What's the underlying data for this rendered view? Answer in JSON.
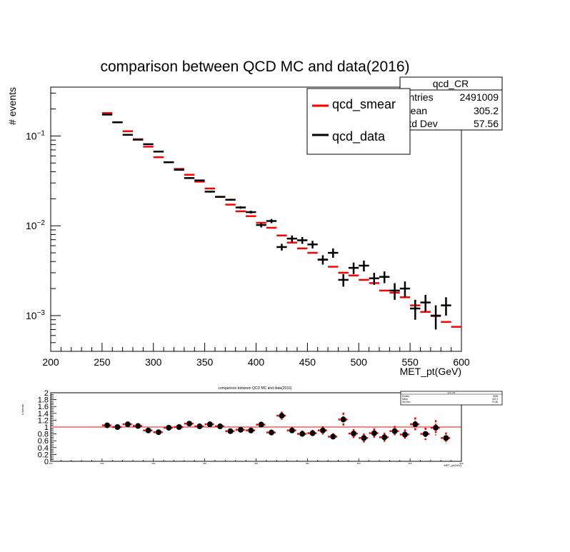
{
  "chart_data": [
    {
      "type": "scatter",
      "title": "comparison between QCD MC and data(2016)",
      "xlabel": "MET_pt(GeV)",
      "ylabel": "# events",
      "xlim": [
        200,
        600
      ],
      "ylim": [
        0.0004,
        0.35
      ],
      "yscale": "log",
      "x_ticks": [
        200,
        250,
        300,
        350,
        400,
        450,
        500,
        550,
        600
      ],
      "y_tick_labels": [
        "10^-1",
        "10^-2",
        "10^-3"
      ],
      "legend": [
        {
          "name": "qcd_smear",
          "color": "#ff0000"
        },
        {
          "name": "qcd_data",
          "color": "#000000"
        }
      ],
      "stats_box": {
        "name": "qcd_CR",
        "rows": [
          {
            "label": "Entries",
            "value": "2491009"
          },
          {
            "label": "Mean",
            "value": "305.2"
          },
          {
            "label": "Std Dev",
            "value": "57.56"
          }
        ]
      },
      "series": [
        {
          "name": "qcd_smear",
          "color": "#ff0000",
          "bin_width": 10,
          "x": [
            255,
            265,
            275,
            285,
            295,
            305,
            315,
            325,
            335,
            345,
            355,
            365,
            375,
            385,
            395,
            405,
            415,
            425,
            435,
            445,
            455,
            465,
            475,
            485,
            495,
            505,
            515,
            525,
            535,
            545,
            555,
            565,
            575,
            585,
            595
          ],
          "y": [
            0.18,
            0.142,
            0.113,
            0.092,
            0.076,
            0.058,
            0.051,
            0.043,
            0.037,
            0.031,
            0.026,
            0.021,
            0.0172,
            0.0145,
            0.0128,
            0.0108,
            0.0095,
            0.0078,
            0.0065,
            0.0056,
            0.005,
            0.0042,
            0.0035,
            0.003,
            0.0028,
            0.0025,
            0.0023,
            0.0019,
            0.0018,
            0.0016,
            0.0013,
            0.0011,
            0.00099,
            0.00085,
            0.00075
          ]
        },
        {
          "name": "qcd_data",
          "color": "#000000",
          "bin_width": 10,
          "x": [
            255,
            265,
            275,
            285,
            295,
            305,
            315,
            325,
            335,
            345,
            355,
            365,
            375,
            385,
            395,
            405,
            415,
            425,
            435,
            445,
            455,
            465,
            475,
            485,
            495,
            505,
            515,
            525,
            535,
            545,
            555,
            565,
            575,
            585
          ],
          "y": [
            0.173,
            0.142,
            0.103,
            0.091,
            0.081,
            0.067,
            0.051,
            0.042,
            0.034,
            0.032,
            0.024,
            0.021,
            0.0195,
            0.016,
            0.0142,
            0.0102,
            0.0113,
            0.0058,
            0.0072,
            0.0069,
            0.0062,
            0.0042,
            0.005,
            0.0025,
            0.0034,
            0.0036,
            0.0026,
            0.0027,
            0.0019,
            0.002,
            0.0012,
            0.0014,
            0.001,
            0.0013
          ],
          "y_err": [
            0.002,
            0.002,
            0.0015,
            0.0013,
            0.0012,
            0.001,
            0.0009,
            0.0008,
            0.0007,
            0.0007,
            0.0006,
            0.0005,
            0.0005,
            0.0005,
            0.0005,
            0.0006,
            0.0006,
            0.0005,
            0.0006,
            0.0006,
            0.0006,
            0.0005,
            0.0006,
            0.0004,
            0.0005,
            0.0005,
            0.0004,
            0.0004,
            0.0004,
            0.0004,
            0.0003,
            0.0003,
            0.0003,
            0.0003
          ]
        }
      ]
    },
    {
      "type": "scatter",
      "title": "comparison between QCD MC and data(2016)",
      "xlabel": "MET_pt(GeV)",
      "ylabel": "# events",
      "xlim": [
        200,
        600
      ],
      "ylim": [
        0,
        2
      ],
      "y_ticks": [
        0,
        0.2,
        0.4,
        0.6,
        0.8,
        1,
        1.2,
        1.4,
        1.6,
        1.8,
        2
      ],
      "y_tick_labels": [
        "0",
        "0.2",
        "0.4",
        "0.6",
        "0.8",
        "1",
        "1.2",
        "1.4",
        "1.6",
        "1.8",
        "2"
      ],
      "x_ticks": [
        200,
        250,
        300,
        350,
        400,
        450,
        500,
        550,
        600
      ],
      "reference_line": 1,
      "stats_box": {
        "name": "qcd_CR",
        "rows": [
          {
            "label": "Entries",
            "value": "3338"
          },
          {
            "label": "Mean",
            "value": "415.3"
          },
          {
            "label": "Std Dev",
            "value": "97.88"
          }
        ]
      },
      "series": [
        {
          "name": "ratio",
          "color": "#000000",
          "error_color": "#ff0000",
          "x": [
            255,
            265,
            275,
            285,
            295,
            305,
            315,
            325,
            335,
            345,
            355,
            365,
            375,
            385,
            395,
            405,
            415,
            425,
            435,
            445,
            455,
            465,
            475,
            485,
            495,
            505,
            515,
            525,
            535,
            545,
            555,
            565,
            575,
            585
          ],
          "y": [
            1.05,
            1.0,
            1.08,
            1.03,
            0.9,
            0.85,
            0.98,
            1.0,
            1.1,
            1.02,
            1.08,
            1.02,
            0.88,
            0.92,
            0.9,
            1.07,
            0.84,
            1.33,
            0.9,
            0.8,
            0.82,
            0.9,
            0.72,
            1.22,
            0.81,
            0.68,
            0.82,
            0.7,
            0.88,
            0.78,
            1.08,
            0.8,
            0.98,
            0.68
          ],
          "y_err": [
            0.04,
            0.04,
            0.05,
            0.05,
            0.05,
            0.05,
            0.05,
            0.05,
            0.06,
            0.06,
            0.06,
            0.06,
            0.06,
            0.07,
            0.07,
            0.09,
            0.08,
            0.12,
            0.1,
            0.1,
            0.1,
            0.12,
            0.1,
            0.2,
            0.13,
            0.13,
            0.14,
            0.13,
            0.15,
            0.15,
            0.2,
            0.18,
            0.22,
            0.16
          ]
        }
      ]
    }
  ]
}
